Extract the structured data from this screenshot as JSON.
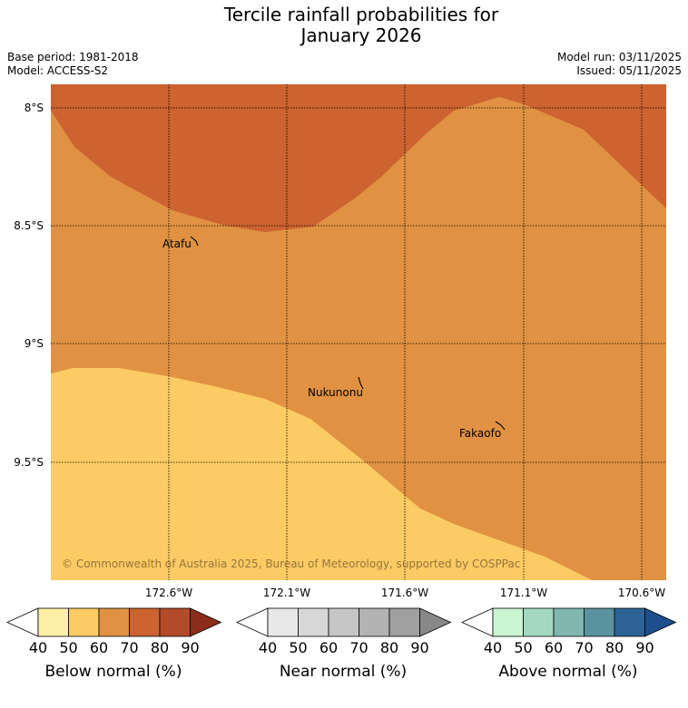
{
  "title": {
    "line1": "Tercile rainfall probabilities for",
    "line2": "January 2026"
  },
  "meta": {
    "base_period": "Base period: 1981-2018",
    "model": "Model: ACCESS-S2",
    "model_run": "Model run: 03/11/2025",
    "issued": "Issued: 05/11/2025"
  },
  "map": {
    "lat_labels": [
      "8°S",
      "8.5°S",
      "9°S",
      "9.5°S"
    ],
    "lon_labels": [
      "172.6°W",
      "172.1°W",
      "171.6°W",
      "171.1°W",
      "170.6°W"
    ],
    "places": [
      "Atafu",
      "Nukunonu",
      "Fakaofo"
    ],
    "copyright": "© Commonwealth of Australia 2025, Bureau of Meteorology, supported by COSPPac",
    "colors": {
      "below_50_60": "#fdcb63",
      "below_60_70": "#e09242",
      "below_70_80": "#cc6330"
    }
  },
  "colorbars": [
    {
      "label": "Below normal (%)",
      "ticks": [
        "40",
        "50",
        "60",
        "70",
        "80",
        "90"
      ],
      "colors": [
        "#ffffff",
        "#fdf0a6",
        "#fdcb63",
        "#e09242",
        "#cc6330",
        "#b34a2a",
        "#8c2d1c"
      ]
    },
    {
      "label": "Near normal (%)",
      "ticks": [
        "40",
        "50",
        "60",
        "70",
        "80",
        "90"
      ],
      "colors": [
        "#ffffff",
        "#e8e8e8",
        "#d7d7d7",
        "#c6c6c6",
        "#b3b3b3",
        "#a0a0a0",
        "#888888"
      ]
    },
    {
      "label": "Above normal (%)",
      "ticks": [
        "40",
        "50",
        "60",
        "70",
        "80",
        "90"
      ],
      "colors": [
        "#ffffff",
        "#c9f5d1",
        "#a4d9bf",
        "#80b8b0",
        "#5b93a0",
        "#2d6497",
        "#1e4f8c"
      ]
    }
  ]
}
